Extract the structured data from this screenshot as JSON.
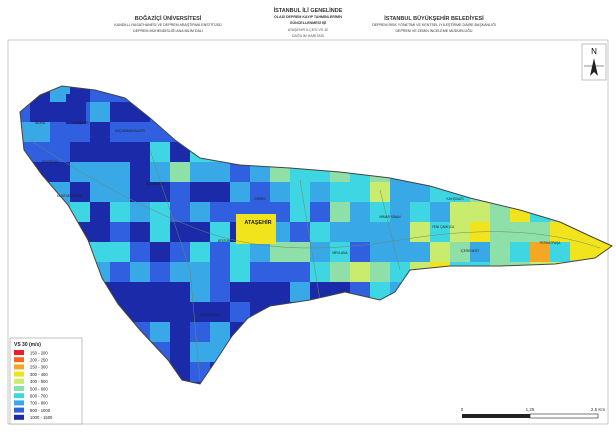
{
  "header": {
    "left": [
      "BOĞAZİÇİ ÜNİVERSİTESİ",
      "KANDİLLİ RASATHANESİ VE DEPREM ARAŞTIRMA ENSTİTÜSÜ",
      "DEPREM MÜHENDİSLİĞİ ANA BİLİM DALI"
    ],
    "center": [
      "İSTANBUL İLİ GENELİNDE",
      "OLASI DEPREM KAYIP TAHMİNLERİNİN",
      "GÜNCELLENMESİ İŞİ"
    ],
    "center_sub": [
      "ATAŞEHİR İLÇESİ VS 30",
      "DAĞILIM HARİTASI"
    ],
    "right": [
      "İSTANBUL BÜYÜKŞEHİR BELEDİYESİ",
      "DEPREM RİSK YÖNETİMİ VE KENTSEL İYİLEŞTİRME DAİRE BAŞKANLIĞI",
      "DEPREM VE ZEMİN İNCELEME MÜDÜRLÜĞÜ"
    ]
  },
  "map": {
    "labels": [
      "ATAŞEHİR",
      "KÜÇÜKBAKKALKÖY",
      "BARBAROS",
      "YENİŞEHİR",
      "FERHATPAŞA",
      "KAYIŞDAĞI",
      "İNÖNÜ",
      "ESATPAŞA",
      "ÖRNEK",
      "MUSTAFA KEMAL",
      "İÇERENKÖY",
      "YENİ ÇAMLICA",
      "MİMAR SİNAN",
      "ATATÜRK",
      "MEVLANA",
      "KOCAYUSUF"
    ],
    "north": "N",
    "legend": {
      "title": "VS 30 (m/s)",
      "items": [
        {
          "label": "150 - 200",
          "color": "#e8202a"
        },
        {
          "label": "200 - 250",
          "color": "#f26a22"
        },
        {
          "label": "250 - 300",
          "color": "#f5a623"
        },
        {
          "label": "300 - 400",
          "color": "#f2e41c"
        },
        {
          "label": "400 - 500",
          "color": "#c9ec6e"
        },
        {
          "label": "500 - 600",
          "color": "#8fe0a8"
        },
        {
          "label": "600 - 700",
          "color": "#3fd6e4"
        },
        {
          "label": "700 - 800",
          "color": "#38a8e6"
        },
        {
          "label": "800 - 1000",
          "color": "#3060e0"
        },
        {
          "label": "1000 - 1500",
          "color": "#1a2aa8"
        }
      ]
    },
    "scale": [
      "0",
      "1,25",
      "2,5 Km"
    ]
  }
}
